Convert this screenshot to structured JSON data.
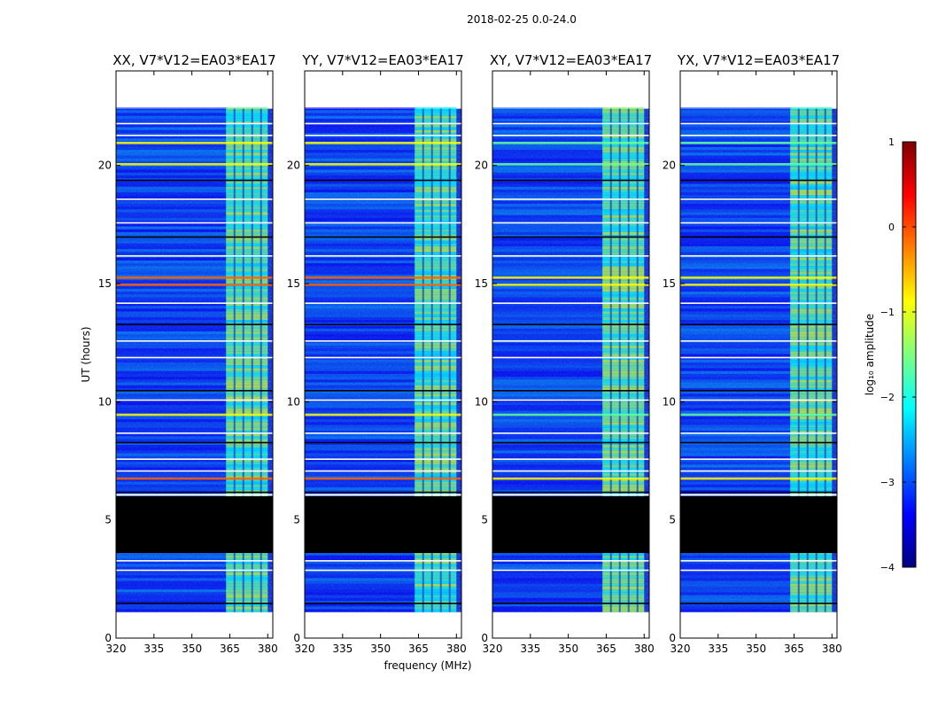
{
  "figure_title": "2018-02-25 0.0-24.0",
  "chart_data": [
    {
      "type": "heatmap",
      "title": "XX, V7*V12=EA03*EA17",
      "xlabel": "frequency (MHz)",
      "ylabel": "UT (hours)",
      "xlim": [
        320,
        382
      ],
      "ylim": [
        0,
        24
      ],
      "xticks": [
        320,
        335,
        350,
        365,
        380
      ],
      "yticks": [
        0,
        5,
        10,
        15,
        20
      ],
      "data_time_range": [
        1.1,
        22.4
      ],
      "flagged_time_range": [
        3.6,
        6.0
      ]
    },
    {
      "type": "heatmap",
      "title": "YY, V7*V12=EA03*EA17",
      "xlabel": "frequency (MHz)",
      "ylabel": "UT (hours)",
      "xlim": [
        320,
        382
      ],
      "ylim": [
        0,
        24
      ],
      "xticks": [
        320,
        335,
        350,
        365,
        380
      ],
      "yticks": [
        0,
        5,
        10,
        15,
        20
      ],
      "data_time_range": [
        1.1,
        22.4
      ],
      "flagged_time_range": [
        3.6,
        6.0
      ]
    },
    {
      "type": "heatmap",
      "title": "XY, V7*V12=EA03*EA17",
      "xlabel": "frequency (MHz)",
      "ylabel": "UT (hours)",
      "xlim": [
        320,
        382
      ],
      "ylim": [
        0,
        24
      ],
      "xticks": [
        320,
        335,
        350,
        365,
        380
      ],
      "yticks": [
        0,
        5,
        10,
        15,
        20
      ],
      "data_time_range": [
        1.1,
        22.4
      ],
      "flagged_time_range": [
        3.6,
        6.0
      ]
    },
    {
      "type": "heatmap",
      "title": "YX, V7*V12=EA03*EA17",
      "xlabel": "frequency (MHz)",
      "ylabel": "UT (hours)",
      "xlim": [
        320,
        382
      ],
      "ylim": [
        0,
        24
      ],
      "xticks": [
        320,
        335,
        350,
        365,
        380
      ],
      "yticks": [
        0,
        5,
        10,
        15,
        20
      ],
      "data_time_range": [
        1.1,
        22.4
      ],
      "flagged_time_range": [
        3.6,
        6.0
      ]
    }
  ],
  "shared_labels": {
    "xlabel": "frequency (MHz)",
    "ylabel": "UT (hours)"
  },
  "colorbar": {
    "label": "log₁₀ amplitude",
    "range": [
      -4,
      1
    ],
    "ticks": [
      1,
      0,
      -1,
      -2,
      -3,
      -4
    ],
    "tick_labels": [
      "1",
      "0",
      "−1",
      "−2",
      "−3",
      "−4"
    ],
    "colormap": "jet",
    "colors": [
      "#00007f",
      "#0000ff",
      "#007fff",
      "#00ffff",
      "#7fff7f",
      "#ffff00",
      "#ff7f00",
      "#ff0000",
      "#7f0000"
    ]
  },
  "colors": {
    "flagged": "#000000",
    "no_data": "#ffffff"
  }
}
